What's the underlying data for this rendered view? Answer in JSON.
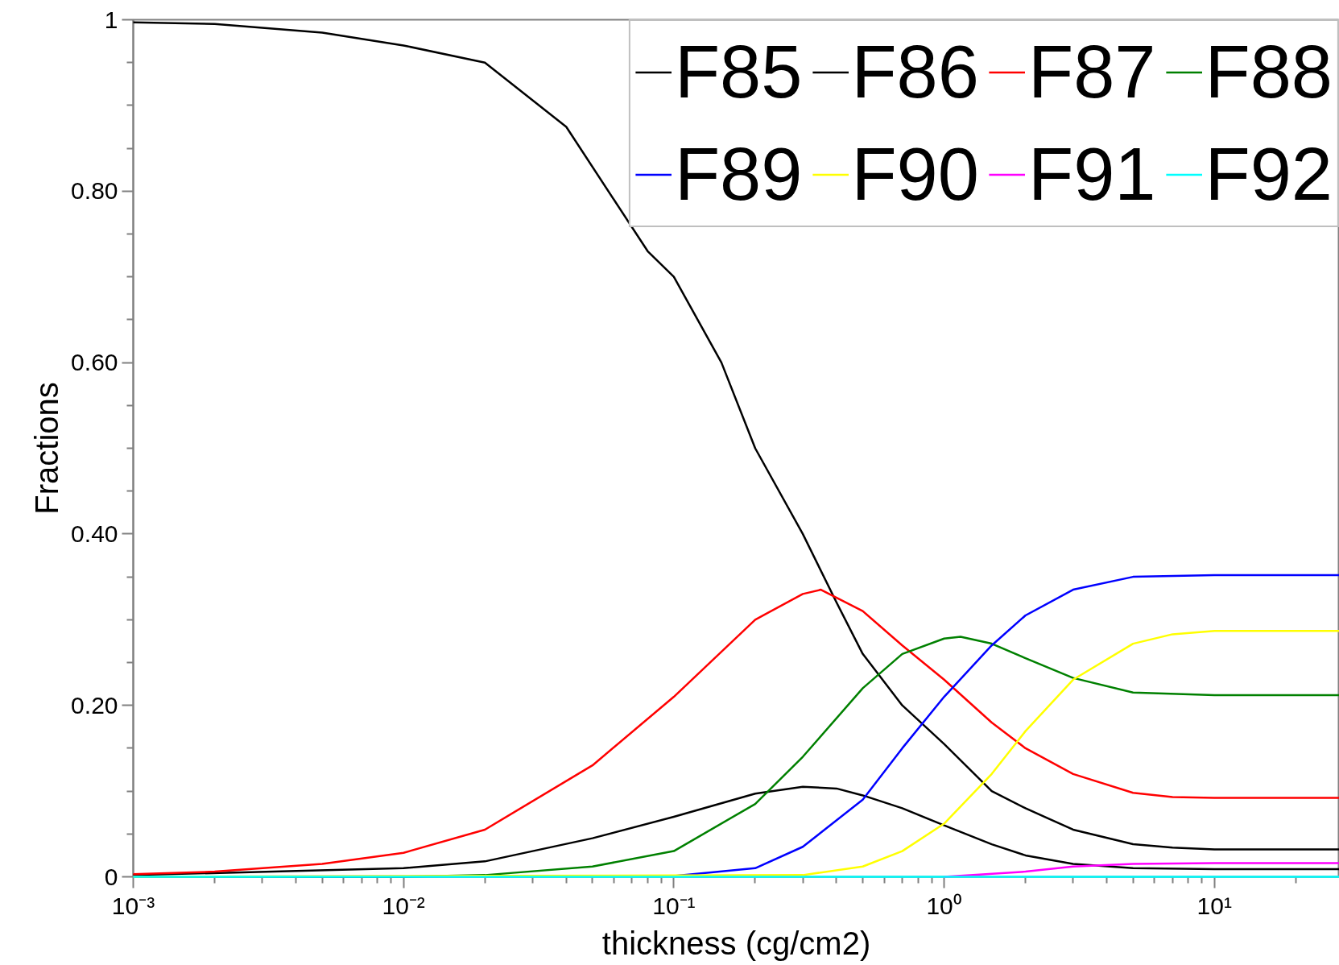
{
  "chart_data": {
    "type": "line",
    "xlabel": "thickness (cg/cm2)",
    "ylabel": "Fractions",
    "log": "x",
    "grid": false,
    "legend": "top right",
    "line_style": "solid",
    "marker": "none",
    "xlim": [
      0.001,
      29
    ],
    "ylim": [
      0,
      1
    ],
    "xticks": [
      {
        "value": 0.001,
        "label": "10⁻³"
      },
      {
        "value": 0.002,
        "label": null
      },
      {
        "value": 0.003,
        "label": null
      },
      {
        "value": 0.004,
        "label": null
      },
      {
        "value": 0.005,
        "label": null
      },
      {
        "value": 0.006,
        "label": null
      },
      {
        "value": 0.007,
        "label": null
      },
      {
        "value": 0.008,
        "label": null
      },
      {
        "value": 0.009,
        "label": null
      },
      {
        "value": 0.01,
        "label": "10⁻²"
      },
      {
        "value": 0.02,
        "label": null
      },
      {
        "value": 0.03,
        "label": null
      },
      {
        "value": 0.04,
        "label": null
      },
      {
        "value": 0.05,
        "label": null
      },
      {
        "value": 0.06,
        "label": null
      },
      {
        "value": 0.07,
        "label": null
      },
      {
        "value": 0.08,
        "label": null
      },
      {
        "value": 0.09,
        "label": null
      },
      {
        "value": 0.1,
        "label": "10⁻¹"
      },
      {
        "value": 0.2,
        "label": null
      },
      {
        "value": 0.3,
        "label": null
      },
      {
        "value": 0.4,
        "label": null
      },
      {
        "value": 0.5,
        "label": null
      },
      {
        "value": 0.6,
        "label": null
      },
      {
        "value": 0.7,
        "label": null
      },
      {
        "value": 0.8,
        "label": null
      },
      {
        "value": 0.9,
        "label": null
      },
      {
        "value": 1,
        "label": "10⁰"
      },
      {
        "value": 2,
        "label": null
      },
      {
        "value": 3,
        "label": null
      },
      {
        "value": 4,
        "label": null
      },
      {
        "value": 5,
        "label": null
      },
      {
        "value": 6,
        "label": null
      },
      {
        "value": 7,
        "label": null
      },
      {
        "value": 8,
        "label": null
      },
      {
        "value": 9,
        "label": null
      },
      {
        "value": 10,
        "label": "10¹"
      },
      {
        "value": 20,
        "label": null
      }
    ],
    "yticks": [
      0,
      {
        "value": 0.05,
        "label": null
      },
      {
        "value": 0.1,
        "label": null
      },
      {
        "value": 0.15,
        "label": null
      },
      {
        "value": 0.2,
        "label": "0.20"
      },
      {
        "value": 0.25,
        "label": null
      },
      {
        "value": 0.3,
        "label": null
      },
      {
        "value": 0.35,
        "label": null
      },
      {
        "value": 0.4,
        "label": "0.40"
      },
      {
        "value": 0.45,
        "label": null
      },
      {
        "value": 0.5,
        "label": null
      },
      {
        "value": 0.55,
        "label": null
      },
      {
        "value": 0.6,
        "label": "0.60"
      },
      {
        "value": 0.65,
        "label": null
      },
      {
        "value": 0.7,
        "label": null
      },
      {
        "value": 0.75,
        "label": null
      },
      {
        "value": 0.8,
        "label": "0.80"
      },
      {
        "value": 0.85,
        "label": null
      },
      {
        "value": 0.9,
        "label": null
      },
      {
        "value": 0.95,
        "label": null
      },
      1
    ],
    "series": [
      {
        "name": "F85",
        "color": "#000000",
        "x": [
          0.001,
          0.002,
          0.005,
          0.01,
          0.02,
          0.04,
          0.08,
          0.1,
          0.15,
          0.2,
          0.3,
          0.4,
          0.5,
          0.7,
          1,
          1.5,
          2,
          3,
          5,
          7,
          10,
          29
        ],
        "values": [
          0.997,
          0.995,
          0.985,
          0.97,
          0.95,
          0.875,
          0.73,
          0.7,
          0.6,
          0.5,
          0.4,
          0.32,
          0.26,
          0.2,
          0.155,
          0.1,
          0.08,
          0.055,
          0.038,
          0.034,
          0.032,
          0.032
        ]
      },
      {
        "name": "F86",
        "color": "#000000",
        "x": [
          0.001,
          0.01,
          0.02,
          0.05,
          0.1,
          0.2,
          0.3,
          0.4,
          0.5,
          0.7,
          1,
          1.5,
          2,
          3,
          5,
          10,
          29
        ],
        "values": [
          0.002,
          0.01,
          0.018,
          0.045,
          0.07,
          0.097,
          0.105,
          0.103,
          0.095,
          0.08,
          0.06,
          0.038,
          0.025,
          0.015,
          0.01,
          0.009,
          0.009
        ]
      },
      {
        "name": "F87",
        "color": "#ff0000",
        "x": [
          0.001,
          0.002,
          0.005,
          0.01,
          0.02,
          0.05,
          0.1,
          0.2,
          0.3,
          0.35,
          0.5,
          0.7,
          1,
          1.5,
          2,
          3,
          5,
          7,
          10,
          29
        ],
        "values": [
          0.003,
          0.006,
          0.015,
          0.028,
          0.055,
          0.13,
          0.21,
          0.3,
          0.33,
          0.335,
          0.31,
          0.27,
          0.23,
          0.18,
          0.15,
          0.12,
          0.098,
          0.093,
          0.092,
          0.092
        ]
      },
      {
        "name": "F88",
        "color": "#008000",
        "x": [
          0.001,
          0.01,
          0.02,
          0.05,
          0.1,
          0.2,
          0.3,
          0.5,
          0.7,
          1,
          1.15,
          1.5,
          2,
          3,
          5,
          10,
          29
        ],
        "values": [
          0,
          0,
          0.002,
          0.012,
          0.03,
          0.085,
          0.14,
          0.22,
          0.26,
          0.278,
          0.28,
          0.272,
          0.255,
          0.232,
          0.215,
          0.212,
          0.212
        ]
      },
      {
        "name": "F89",
        "color": "#0000ff",
        "x": [
          0.001,
          0.1,
          0.2,
          0.3,
          0.5,
          0.7,
          1,
          1.5,
          2,
          3,
          5,
          10,
          29
        ],
        "values": [
          0,
          0.001,
          0.01,
          0.035,
          0.09,
          0.15,
          0.21,
          0.27,
          0.305,
          0.335,
          0.35,
          0.352,
          0.352
        ]
      },
      {
        "name": "F90",
        "color": "#ffff00",
        "x": [
          0.001,
          0.3,
          0.5,
          0.7,
          1,
          1.5,
          2,
          3,
          5,
          7,
          10,
          29
        ],
        "values": [
          0,
          0.002,
          0.012,
          0.03,
          0.062,
          0.12,
          0.17,
          0.23,
          0.272,
          0.283,
          0.287,
          0.287
        ]
      },
      {
        "name": "F91",
        "color": "#ff00ff",
        "x": [
          1,
          2,
          3,
          5,
          10,
          29
        ],
        "values": [
          0,
          0.006,
          0.012,
          0.015,
          0.016,
          0.016
        ]
      },
      {
        "name": "F92",
        "color": "#00ffff",
        "x": [
          0.001,
          29
        ],
        "values": [
          0,
          0
        ]
      }
    ]
  }
}
